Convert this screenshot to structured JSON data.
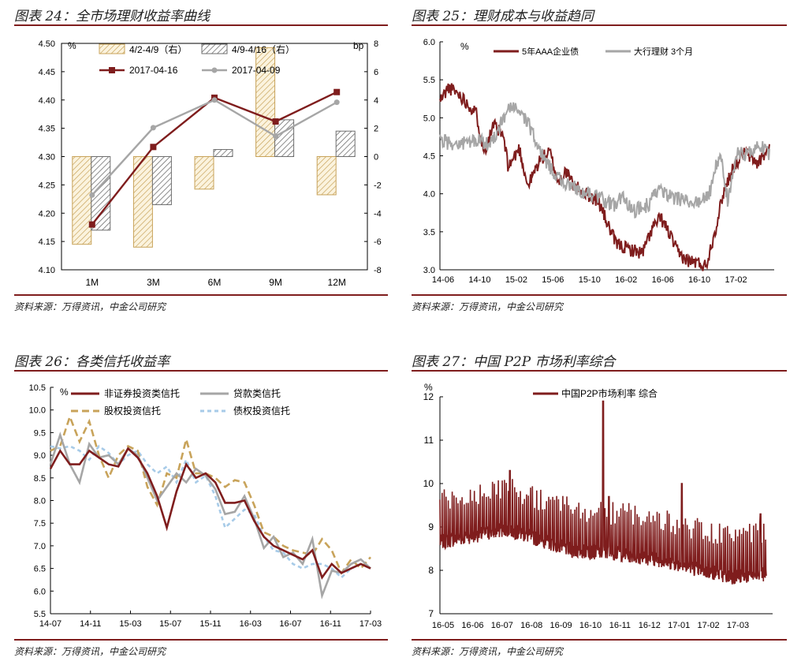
{
  "colors": {
    "brown": "#7f1d1d",
    "gray": "#a6a6a6",
    "tan": "#c8a35a",
    "hatch_gray": "#6e6e6e",
    "dashblue": "#a7cbe8",
    "rule": "#7f1d1d"
  },
  "chart_data": [
    {
      "id": "c24",
      "title": "图表 24：全市场理财收益率曲线",
      "source": "资料来源：万得资讯，中金公司研究",
      "type": "bar",
      "categories": [
        "1M",
        "3M",
        "6M",
        "9M",
        "12M"
      ],
      "yleft": {
        "label": "%",
        "lim": [
          4.1,
          4.5
        ],
        "ticks": [
          "4.10",
          "4.15",
          "4.20",
          "4.25",
          "4.30",
          "4.35",
          "4.40",
          "4.45",
          "4.50"
        ]
      },
      "yright": {
        "label": "bp",
        "lim": [
          -8,
          8
        ],
        "ticks": [
          "-8",
          "-6",
          "-4",
          "-2",
          "0",
          "2",
          "4",
          "6",
          "8"
        ]
      },
      "bars": [
        {
          "name": "4/2-4/9（右）",
          "values": [
            -6.2,
            -6.4,
            -2.3,
            7.7,
            -2.7
          ]
        },
        {
          "name": "4/9-4/16（右）",
          "values": [
            -5.2,
            -3.4,
            0.5,
            2.6,
            1.8
          ]
        }
      ],
      "lines": [
        {
          "name": "2017-04-16",
          "values": [
            4.18,
            4.317,
            4.404,
            4.362,
            4.414
          ]
        },
        {
          "name": "2017-04-09",
          "values": [
            4.232,
            4.351,
            4.4,
            4.336,
            4.396
          ]
        }
      ]
    },
    {
      "id": "c25",
      "title": "图表 25：理财成本与收益趋同",
      "source": "资料来源：万得资讯，中金公司研究",
      "type": "line",
      "xlabels": [
        "14-06",
        "14-10",
        "15-02",
        "15-06",
        "15-10",
        "16-02",
        "16-06",
        "16-10",
        "17-02"
      ],
      "y": {
        "label": "%",
        "lim": [
          3.0,
          6.0
        ],
        "ticks": [
          "3.0",
          "3.5",
          "4.0",
          "4.5",
          "5.0",
          "5.5",
          "6.0"
        ]
      },
      "series": [
        {
          "name": "5年AAA企业债",
          "anchors": [
            [
              0,
              5.22
            ],
            [
              0.7,
              5.4
            ],
            [
              1.5,
              5.32
            ],
            [
              2.2,
              5.2
            ],
            [
              3,
              5.05
            ],
            [
              3.6,
              4.55
            ],
            [
              4.4,
              4.9
            ],
            [
              5.2,
              4.75
            ],
            [
              5.6,
              4.35
            ],
            [
              6.5,
              4.6
            ],
            [
              7.2,
              4.1
            ],
            [
              8.2,
              4.45
            ],
            [
              9,
              4.55
            ],
            [
              9.7,
              4.15
            ],
            [
              10.3,
              4.3
            ],
            [
              11,
              4.1
            ],
            [
              12,
              4.0
            ],
            [
              13,
              3.9
            ],
            [
              13.7,
              3.62
            ],
            [
              14.4,
              3.35
            ],
            [
              15.3,
              3.28
            ],
            [
              16.6,
              3.22
            ],
            [
              17.4,
              3.55
            ],
            [
              18.1,
              3.68
            ],
            [
              18.8,
              3.48
            ],
            [
              19.5,
              3.22
            ],
            [
              20.3,
              3.12
            ],
            [
              21,
              3.1
            ],
            [
              21.8,
              3.05
            ],
            [
              22.6,
              3.55
            ],
            [
              23.2,
              4.0
            ],
            [
              24,
              4.35
            ],
            [
              25,
              4.55
            ],
            [
              26,
              4.4
            ],
            [
              27,
              4.6
            ]
          ]
        },
        {
          "name": "大行理财 3个月",
          "anchors": [
            [
              0,
              4.7
            ],
            [
              1.5,
              4.65
            ],
            [
              3,
              4.7
            ],
            [
              4,
              4.65
            ],
            [
              4.8,
              4.85
            ],
            [
              5.5,
              5.1
            ],
            [
              6.5,
              5.12
            ],
            [
              7.3,
              4.9
            ],
            [
              8.4,
              4.5
            ],
            [
              9.5,
              4.25
            ],
            [
              10.5,
              4.1
            ],
            [
              11.5,
              4.05
            ],
            [
              12.5,
              3.98
            ],
            [
              13.3,
              3.92
            ],
            [
              14.3,
              3.85
            ],
            [
              15,
              3.95
            ],
            [
              16,
              3.78
            ],
            [
              17,
              3.85
            ],
            [
              18,
              4.05
            ],
            [
              19,
              3.95
            ],
            [
              20,
              3.9
            ],
            [
              21,
              3.88
            ],
            [
              22,
              3.95
            ],
            [
              22.6,
              4.35
            ],
            [
              23,
              4.5
            ],
            [
              23.6,
              3.9
            ],
            [
              24.4,
              4.55
            ],
            [
              25.2,
              4.5
            ],
            [
              26.2,
              4.65
            ],
            [
              27,
              4.5
            ]
          ]
        }
      ]
    },
    {
      "id": "c26",
      "title": "图表 26：各类信托收益率",
      "source": "资料来源：万得资讯，中金公司研究",
      "type": "line",
      "xlabels": [
        "14-07",
        "14-11",
        "15-03",
        "15-07",
        "15-11",
        "16-03",
        "16-07",
        "16-11",
        "17-03"
      ],
      "y": {
        "label": "%",
        "lim": [
          5.5,
          10.5
        ],
        "ticks": [
          "5.5",
          "6.0",
          "6.5",
          "7.0",
          "7.5",
          "8.0",
          "8.5",
          "9.0",
          "9.5",
          "10.0",
          "10.5"
        ]
      },
      "series": [
        {
          "name": "非证券投资类信托",
          "values": [
            8.7,
            9.1,
            8.8,
            8.8,
            9.1,
            8.95,
            8.8,
            8.75,
            9.15,
            8.95,
            8.6,
            8.1,
            7.4,
            8.2,
            8.8,
            8.5,
            8.6,
            8.4,
            7.95,
            7.95,
            8.0,
            7.55,
            7.2,
            7.0,
            6.9,
            6.8,
            6.7,
            6.9,
            6.3,
            6.6,
            6.4,
            6.5,
            6.6,
            6.5
          ]
        },
        {
          "name": "贷款类信托",
          "values": [
            8.8,
            9.45,
            8.8,
            8.4,
            9.25,
            8.95,
            9.0,
            8.8,
            9.15,
            9.0,
            8.5,
            8.0,
            8.3,
            8.6,
            8.4,
            8.7,
            8.55,
            8.25,
            7.7,
            7.75,
            8.1,
            7.6,
            6.95,
            7.2,
            6.75,
            6.85,
            6.6,
            7.15,
            5.9,
            6.45,
            6.4,
            6.6,
            6.7,
            6.5
          ]
        },
        {
          "name": "股权投资信托",
          "values": [
            9.1,
            9.2,
            9.85,
            9.3,
            9.75,
            9.0,
            8.5,
            9.0,
            9.2,
            9.1,
            8.3,
            7.9,
            8.6,
            8.5,
            9.35,
            8.6,
            8.6,
            8.5,
            8.3,
            8.45,
            8.4,
            7.9,
            7.3,
            7.2,
            7.0,
            6.9,
            6.85,
            6.8,
            7.15,
            6.9,
            6.4,
            6.7,
            6.5,
            6.75
          ]
        },
        {
          "name": "债权投资信托",
          "values": [
            9.2,
            9.15,
            9.2,
            9.1,
            8.9,
            9.2,
            9.05,
            8.8,
            9.0,
            9.1,
            8.8,
            8.6,
            8.75,
            8.4,
            8.9,
            8.4,
            8.55,
            8.1,
            7.4,
            7.6,
            7.8,
            7.7,
            7.2,
            6.9,
            6.85,
            6.6,
            6.5,
            6.6,
            6.6,
            6.5,
            6.3,
            6.5,
            6.6,
            6.5
          ]
        }
      ]
    },
    {
      "id": "c27",
      "title": "图表 27：中国 P2P 市场利率综合",
      "source": "资料来源：万得资讯，中金公司研究",
      "type": "line",
      "xlabels": [
        "16-05",
        "16-06",
        "16-07",
        "16-08",
        "16-09",
        "16-10",
        "16-11",
        "16-12",
        "17-01",
        "17-02",
        "17-03"
      ],
      "y": {
        "label": "%",
        "lim": [
          7,
          12
        ],
        "ticks": [
          "7",
          "8",
          "9",
          "10",
          "11",
          "12"
        ]
      },
      "series": [
        {
          "name": "中国P2P市场利率 综合",
          "base": [
            [
              0,
              8.8
            ],
            [
              2.3,
              9.1
            ],
            [
              4.6,
              8.6
            ],
            [
              6,
              8.55
            ],
            [
              7.5,
              8.4
            ],
            [
              9,
              8.15
            ],
            [
              10,
              8.0
            ],
            [
              11.2,
              8.05
            ]
          ],
          "spikes": [
            [
              2.4,
              10.3
            ],
            [
              5.6,
              11.9
            ],
            [
              5.8,
              9.7
            ],
            [
              8.3,
              10.0
            ],
            [
              11.0,
              9.3
            ]
          ]
        }
      ]
    }
  ]
}
